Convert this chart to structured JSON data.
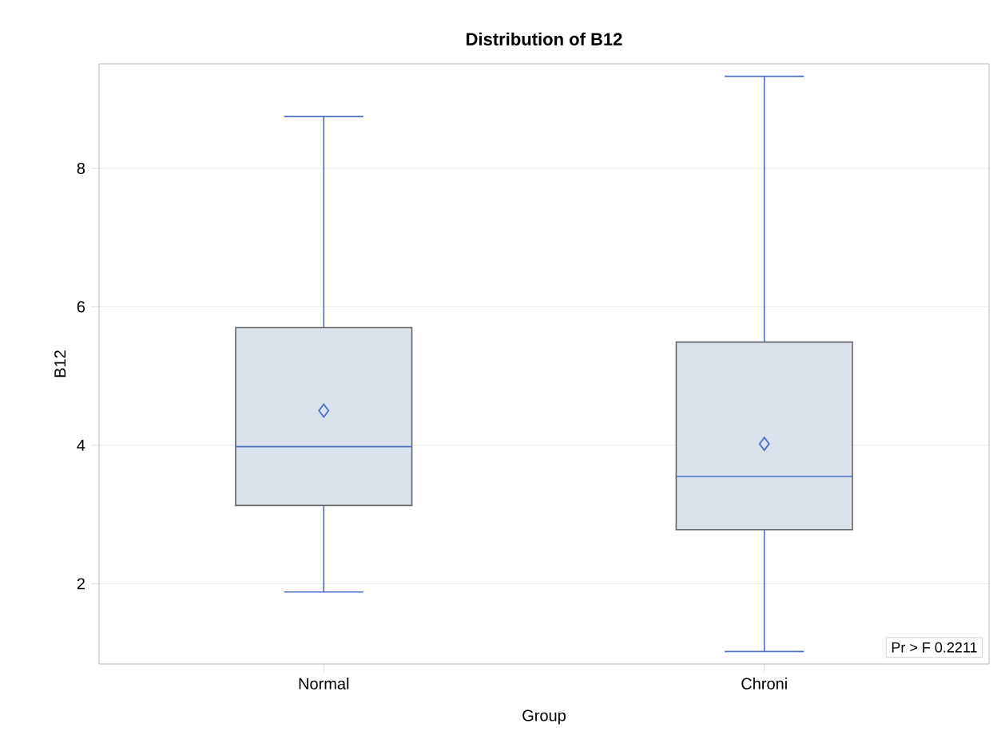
{
  "chart_data": {
    "type": "box",
    "title": "Distribution of B12",
    "xlabel": "Group",
    "ylabel": "B12",
    "categories": [
      "Normal",
      "Chroni"
    ],
    "boxes": [
      {
        "low": 1.88,
        "q1": 3.13,
        "median": 3.98,
        "q3": 5.7,
        "high": 8.75,
        "mean": 4.5
      },
      {
        "low": 1.02,
        "q1": 2.78,
        "median": 3.55,
        "q3": 5.49,
        "high": 9.33,
        "mean": 4.02
      }
    ],
    "color": "#dae2ec",
    "marker": "diamond",
    "ylim": [
      0.84,
      9.51
    ],
    "yticks": [
      2,
      4,
      6,
      8
    ],
    "grid": "y",
    "annotations": [
      "Pr > F   0.2211"
    ]
  }
}
